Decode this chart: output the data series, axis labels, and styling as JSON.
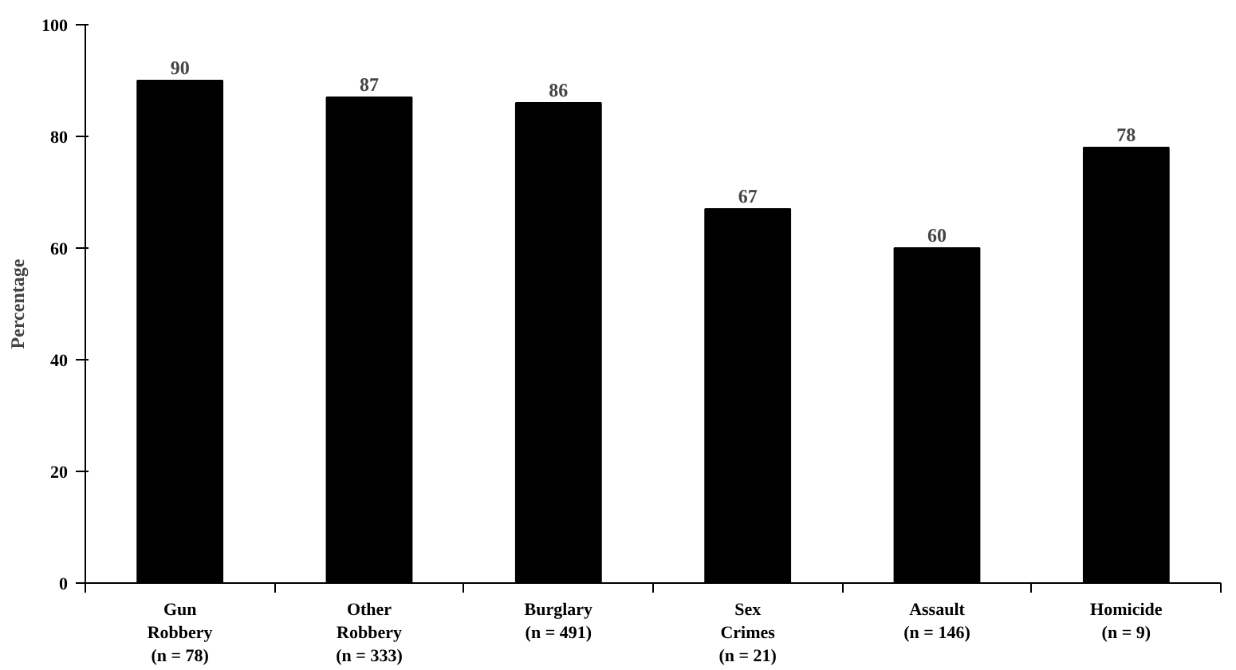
{
  "chart_data": {
    "type": "bar",
    "ylabel": "Percentage",
    "categories": [
      "Gun\nRobbery\n(n = 78)",
      "Other\nRobbery\n(n = 333)",
      "Burglary\n(n = 491)",
      "Sex\nCrimes\n(n = 21)",
      "Assault\n(n = 146)",
      "Homicide\n(n = 9)"
    ],
    "values": [
      90,
      87,
      86,
      67,
      60,
      78
    ],
    "color": "#000000",
    "ylim": [
      0,
      100
    ],
    "yticks": [
      0,
      20,
      40,
      60,
      80,
      100
    ],
    "data_labels": true,
    "grid": false
  }
}
